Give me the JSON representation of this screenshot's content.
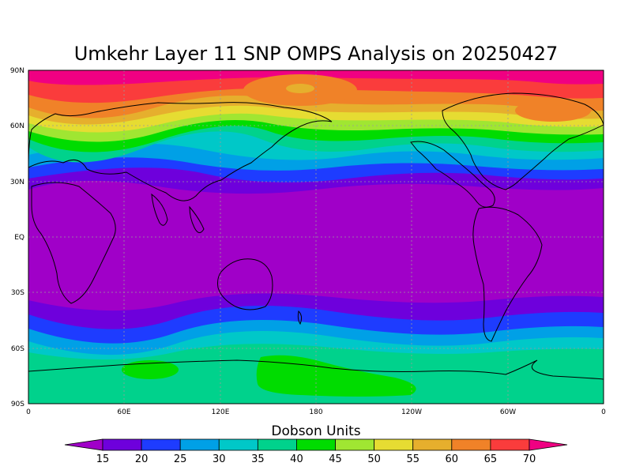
{
  "title": "Umkehr Layer 11 SNP OMPS Analysis on 20250427",
  "map": {
    "lat_ticks": [
      "90N",
      "60N",
      "30N",
      "EQ",
      "30S",
      "60S",
      "90S"
    ],
    "lon_ticks": [
      "0",
      "60E",
      "120E",
      "180",
      "120W",
      "60W",
      "0"
    ]
  },
  "colorbar": {
    "title": "Dobson Units",
    "labels": [
      "15",
      "20",
      "25",
      "30",
      "35",
      "40",
      "45",
      "50",
      "55",
      "60",
      "65",
      "70"
    ],
    "colors": [
      "#a000c8",
      "#6e00dc",
      "#1e3cff",
      "#00a0e6",
      "#00c8c8",
      "#00d28c",
      "#00dc00",
      "#a0e632",
      "#e6dc32",
      "#e6af2d",
      "#f08228",
      "#fa3c3c",
      "#f00082"
    ]
  }
}
